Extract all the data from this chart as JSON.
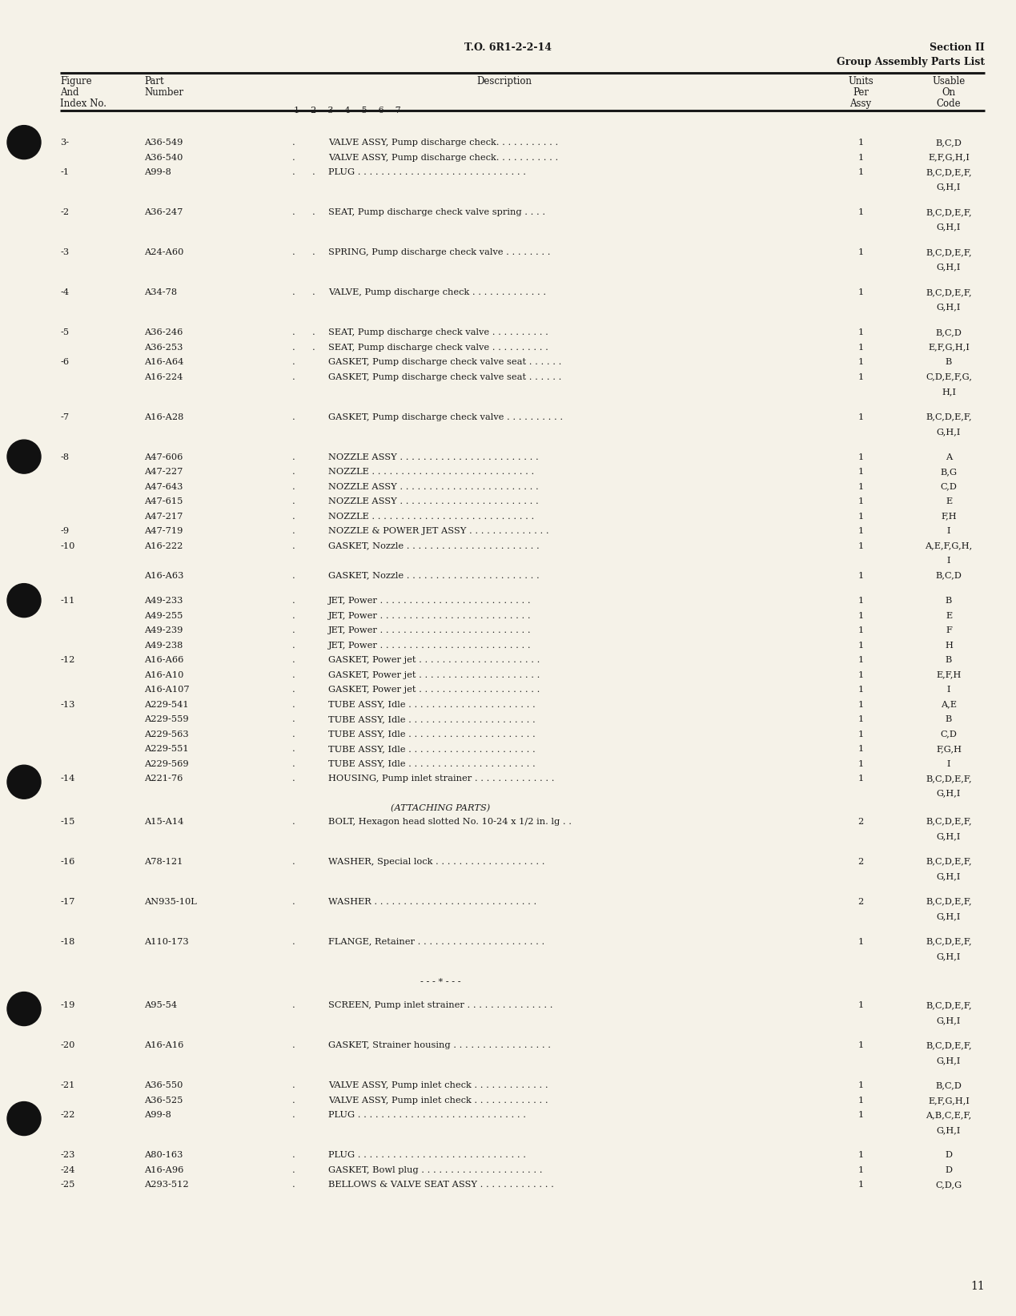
{
  "bg_color": "#f5f2e8",
  "page_number": "11",
  "header_center": "T.O. 6R1-2-2-14",
  "header_right_line1": "Section II",
  "header_right_line2": "Group Assembly Parts List",
  "text_color": "#1a1a1a",
  "font_family": "DejaVu Serif",
  "rows": [
    {
      "fig": "3-",
      "part": "A36-549",
      "indent": 1,
      "desc": "VALVE ASSY, Pump discharge check. . . . . . . . . . .",
      "units": "1",
      "usable": [
        "B,C,D"
      ],
      "gap_before": true,
      "bullet": true
    },
    {
      "fig": "",
      "part": "A36-540",
      "indent": 1,
      "desc": "VALVE ASSY, Pump discharge check. . . . . . . . . . .",
      "units": "1",
      "usable": [
        "E,F,G,H,I"
      ],
      "gap_before": false,
      "bullet": false
    },
    {
      "fig": "-1",
      "part": "A99-8",
      "indent": 2,
      "desc": "PLUG . . . . . . . . . . . . . . . . . . . . . . . . . . . . .",
      "units": "1",
      "usable": [
        "B,C,D,E,F,",
        "G,H,I"
      ],
      "gap_before": false,
      "bullet": false
    },
    {
      "fig": "-2",
      "part": "A36-247",
      "indent": 2,
      "desc": "SEAT, Pump discharge check valve spring . . . .",
      "units": "1",
      "usable": [
        "B,C,D,E,F,",
        "G,H,I"
      ],
      "gap_before": true,
      "bullet": false
    },
    {
      "fig": "-3",
      "part": "A24-A60",
      "indent": 2,
      "desc": "SPRING, Pump discharge check valve . . . . . . . .",
      "units": "1",
      "usable": [
        "B,C,D,E,F,",
        "G,H,I"
      ],
      "gap_before": true,
      "bullet": false
    },
    {
      "fig": "-4",
      "part": "A34-78",
      "indent": 2,
      "desc": "VALVE, Pump discharge check . . . . . . . . . . . . .",
      "units": "1",
      "usable": [
        "B,C,D,E,F,",
        "G,H,I"
      ],
      "gap_before": true,
      "bullet": false
    },
    {
      "fig": "-5",
      "part": "A36-246",
      "indent": 2,
      "desc": "SEAT, Pump discharge check valve . . . . . . . . . .",
      "units": "1",
      "usable": [
        "B,C,D"
      ],
      "gap_before": true,
      "bullet": false
    },
    {
      "fig": "",
      "part": "A36-253",
      "indent": 2,
      "desc": "SEAT, Pump discharge check valve . . . . . . . . . .",
      "units": "1",
      "usable": [
        "E,F,G,H,I"
      ],
      "gap_before": false,
      "bullet": false
    },
    {
      "fig": "-6",
      "part": "A16-A64",
      "indent": 1,
      "desc": "GASKET, Pump discharge check valve seat . . . . . .",
      "units": "1",
      "usable": [
        "B"
      ],
      "gap_before": false,
      "bullet": false
    },
    {
      "fig": "",
      "part": "A16-224",
      "indent": 1,
      "desc": "GASKET, Pump discharge check valve seat . . . . . .",
      "units": "1",
      "usable": [
        "C,D,E,F,G,",
        "H,I"
      ],
      "gap_before": false,
      "bullet": false
    },
    {
      "fig": "-7",
      "part": "A16-A28",
      "indent": 1,
      "desc": "GASKET, Pump discharge check valve . . . . . . . . . .",
      "units": "1",
      "usable": [
        "B,C,D,E,F,",
        "G,H,I"
      ],
      "gap_before": true,
      "bullet": false
    },
    {
      "fig": "-8",
      "part": "A47-606",
      "indent": 1,
      "desc": "NOZZLE ASSY . . . . . . . . . . . . . . . . . . . . . . . .",
      "units": "1",
      "usable": [
        "A"
      ],
      "gap_before": true,
      "bullet": true
    },
    {
      "fig": "",
      "part": "A47-227",
      "indent": 1,
      "desc": "NOZZLE . . . . . . . . . . . . . . . . . . . . . . . . . . . .",
      "units": "1",
      "usable": [
        "B,G"
      ],
      "gap_before": false,
      "bullet": false
    },
    {
      "fig": "",
      "part": "A47-643",
      "indent": 1,
      "desc": "NOZZLE ASSY . . . . . . . . . . . . . . . . . . . . . . . .",
      "units": "1",
      "usable": [
        "C,D"
      ],
      "gap_before": false,
      "bullet": false
    },
    {
      "fig": "",
      "part": "A47-615",
      "indent": 1,
      "desc": "NOZZLE ASSY . . . . . . . . . . . . . . . . . . . . . . . .",
      "units": "1",
      "usable": [
        "E"
      ],
      "gap_before": false,
      "bullet": false
    },
    {
      "fig": "",
      "part": "A47-217",
      "indent": 1,
      "desc": "NOZZLE . . . . . . . . . . . . . . . . . . . . . . . . . . . .",
      "units": "1",
      "usable": [
        "F,H"
      ],
      "gap_before": false,
      "bullet": false
    },
    {
      "fig": "-9",
      "part": "A47-719",
      "indent": 1,
      "desc": "NOZZLE & POWER JET ASSY . . . . . . . . . . . . . .",
      "units": "1",
      "usable": [
        "I"
      ],
      "gap_before": false,
      "bullet": false
    },
    {
      "fig": "-10",
      "part": "A16-222",
      "indent": 1,
      "desc": "GASKET, Nozzle . . . . . . . . . . . . . . . . . . . . . . .",
      "units": "1",
      "usable": [
        "A,E,F,G,H,",
        "I"
      ],
      "gap_before": false,
      "bullet": false
    },
    {
      "fig": "",
      "part": "A16-A63",
      "indent": 1,
      "desc": "GASKET, Nozzle . . . . . . . . . . . . . . . . . . . . . . .",
      "units": "1",
      "usable": [
        "B,C,D"
      ],
      "gap_before": false,
      "bullet": false
    },
    {
      "fig": "-11",
      "part": "A49-233",
      "indent": 1,
      "desc": "JET, Power . . . . . . . . . . . . . . . . . . . . . . . . . .",
      "units": "1",
      "usable": [
        "B"
      ],
      "gap_before": true,
      "bullet": true
    },
    {
      "fig": "",
      "part": "A49-255",
      "indent": 1,
      "desc": "JET, Power . . . . . . . . . . . . . . . . . . . . . . . . . .",
      "units": "1",
      "usable": [
        "E"
      ],
      "gap_before": false,
      "bullet": false
    },
    {
      "fig": "",
      "part": "A49-239",
      "indent": 1,
      "desc": "JET, Power . . . . . . . . . . . . . . . . . . . . . . . . . .",
      "units": "1",
      "usable": [
        "F"
      ],
      "gap_before": false,
      "bullet": false
    },
    {
      "fig": "",
      "part": "A49-238",
      "indent": 1,
      "desc": "JET, Power . . . . . . . . . . . . . . . . . . . . . . . . . .",
      "units": "1",
      "usable": [
        "H"
      ],
      "gap_before": false,
      "bullet": false
    },
    {
      "fig": "-12",
      "part": "A16-A66",
      "indent": 1,
      "desc": "GASKET, Power jet . . . . . . . . . . . . . . . . . . . . .",
      "units": "1",
      "usable": [
        "B"
      ],
      "gap_before": false,
      "bullet": false
    },
    {
      "fig": "",
      "part": "A16-A10",
      "indent": 1,
      "desc": "GASKET, Power jet . . . . . . . . . . . . . . . . . . . . .",
      "units": "1",
      "usable": [
        "E,F,H"
      ],
      "gap_before": false,
      "bullet": false
    },
    {
      "fig": "",
      "part": "A16-A107",
      "indent": 1,
      "desc": "GASKET, Power jet . . . . . . . . . . . . . . . . . . . . .",
      "units": "1",
      "usable": [
        "I"
      ],
      "gap_before": false,
      "bullet": false
    },
    {
      "fig": "-13",
      "part": "A229-541",
      "indent": 1,
      "desc": "TUBE ASSY, Idle . . . . . . . . . . . . . . . . . . . . . .",
      "units": "1",
      "usable": [
        "A,E"
      ],
      "gap_before": false,
      "bullet": false
    },
    {
      "fig": "",
      "part": "A229-559",
      "indent": 1,
      "desc": "TUBE ASSY, Idle . . . . . . . . . . . . . . . . . . . . . .",
      "units": "1",
      "usable": [
        "B"
      ],
      "gap_before": false,
      "bullet": false
    },
    {
      "fig": "",
      "part": "A229-563",
      "indent": 1,
      "desc": "TUBE ASSY, Idle . . . . . . . . . . . . . . . . . . . . . .",
      "units": "1",
      "usable": [
        "C,D"
      ],
      "gap_before": false,
      "bullet": false
    },
    {
      "fig": "",
      "part": "A229-551",
      "indent": 1,
      "desc": "TUBE ASSY, Idle . . . . . . . . . . . . . . . . . . . . . .",
      "units": "1",
      "usable": [
        "F,G,H"
      ],
      "gap_before": false,
      "bullet": false
    },
    {
      "fig": "",
      "part": "A229-569",
      "indent": 1,
      "desc": "TUBE ASSY, Idle . . . . . . . . . . . . . . . . . . . . . .",
      "units": "1",
      "usable": [
        "I"
      ],
      "gap_before": false,
      "bullet": false
    },
    {
      "fig": "-14",
      "part": "A221-76",
      "indent": 1,
      "desc": "HOUSING, Pump inlet strainer . . . . . . . . . . . . . .",
      "units": "1",
      "usable": [
        "B,C,D,E,F,",
        "G,H,I"
      ],
      "gap_before": false,
      "bullet": true
    },
    {
      "fig": "",
      "part": "",
      "indent": 0,
      "desc": "(ATTACHING PARTS)",
      "units": "",
      "usable": [],
      "gap_before": false,
      "bullet": false,
      "center": true
    },
    {
      "fig": "-15",
      "part": "A15-A14",
      "indent": 1,
      "desc": "BOLT, Hexagon head slotted No. 10-24 x 1/2 in. lg . .",
      "units": "2",
      "usable": [
        "B,C,D,E,F,",
        "G,H,I"
      ],
      "gap_before": false,
      "bullet": false
    },
    {
      "fig": "-16",
      "part": "A78-121",
      "indent": 1,
      "desc": "WASHER, Special lock . . . . . . . . . . . . . . . . . . .",
      "units": "2",
      "usable": [
        "B,C,D,E,F,",
        "G,H,I"
      ],
      "gap_before": true,
      "bullet": false
    },
    {
      "fig": "-17",
      "part": "AN935-10L",
      "indent": 1,
      "desc": "WASHER . . . . . . . . . . . . . . . . . . . . . . . . . . . .",
      "units": "2",
      "usable": [
        "B,C,D,E,F,",
        "G,H,I"
      ],
      "gap_before": true,
      "bullet": false
    },
    {
      "fig": "-18",
      "part": "A110-173",
      "indent": 1,
      "desc": "FLANGE, Retainer . . . . . . . . . . . . . . . . . . . . . .",
      "units": "1",
      "usable": [
        "B,C,D,E,F,",
        "G,H,I"
      ],
      "gap_before": true,
      "bullet": false
    },
    {
      "fig": "",
      "part": "",
      "indent": 0,
      "desc": "- - - * - - -",
      "units": "",
      "usable": [],
      "gap_before": true,
      "bullet": false,
      "center": true
    },
    {
      "fig": "-19",
      "part": "A95-54",
      "indent": 1,
      "desc": "SCREEN, Pump inlet strainer . . . . . . . . . . . . . . .",
      "units": "1",
      "usable": [
        "B,C,D,E,F,",
        "G,H,I"
      ],
      "gap_before": true,
      "bullet": true
    },
    {
      "fig": "-20",
      "part": "A16-A16",
      "indent": 1,
      "desc": "GASKET, Strainer housing . . . . . . . . . . . . . . . . .",
      "units": "1",
      "usable": [
        "B,C,D,E,F,",
        "G,H,I"
      ],
      "gap_before": true,
      "bullet": false
    },
    {
      "fig": "-21",
      "part": "A36-550",
      "indent": 1,
      "desc": "VALVE ASSY, Pump inlet check . . . . . . . . . . . . .",
      "units": "1",
      "usable": [
        "B,C,D"
      ],
      "gap_before": true,
      "bullet": false
    },
    {
      "fig": "",
      "part": "A36-525",
      "indent": 1,
      "desc": "VALVE ASSY, Pump inlet check . . . . . . . . . . . . .",
      "units": "1",
      "usable": [
        "E,F,G,H,I"
      ],
      "gap_before": false,
      "bullet": false
    },
    {
      "fig": "-22",
      "part": "A99-8",
      "indent": 1,
      "desc": "PLUG . . . . . . . . . . . . . . . . . . . . . . . . . . . . .",
      "units": "1",
      "usable": [
        "A,B,C,E,F,",
        "G,H,I"
      ],
      "gap_before": false,
      "bullet": true
    },
    {
      "fig": "-23",
      "part": "A80-163",
      "indent": 1,
      "desc": "PLUG . . . . . . . . . . . . . . . . . . . . . . . . . . . . .",
      "units": "1",
      "usable": [
        "D"
      ],
      "gap_before": true,
      "bullet": false
    },
    {
      "fig": "-24",
      "part": "A16-A96",
      "indent": 1,
      "desc": "GASKET, Bowl plug . . . . . . . . . . . . . . . . . . . . .",
      "units": "1",
      "usable": [
        "D"
      ],
      "gap_before": false,
      "bullet": false
    },
    {
      "fig": "-25",
      "part": "A293-512",
      "indent": 1,
      "desc": "BELLOWS & VALVE SEAT ASSY . . . . . . . . . . . . .",
      "units": "1",
      "usable": [
        "C,D,G"
      ],
      "gap_before": false,
      "bullet": false
    }
  ]
}
